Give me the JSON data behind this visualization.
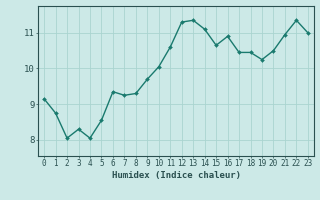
{
  "x": [
    0,
    1,
    2,
    3,
    4,
    5,
    6,
    7,
    8,
    9,
    10,
    11,
    12,
    13,
    14,
    15,
    16,
    17,
    18,
    19,
    20,
    21,
    22,
    23
  ],
  "y": [
    9.15,
    8.75,
    8.05,
    8.3,
    8.05,
    8.55,
    9.35,
    9.25,
    9.3,
    9.7,
    10.05,
    10.6,
    11.3,
    11.35,
    11.1,
    10.65,
    10.9,
    10.45,
    10.45,
    10.25,
    10.5,
    10.95,
    11.35,
    11.0
  ],
  "line_color": "#1a7a6e",
  "marker": "D",
  "marker_size": 2.0,
  "linewidth": 1.0,
  "bg_color": "#cce9e7",
  "grid_color": "#aad4d0",
  "axis_color": "#2a5050",
  "xlabel": "Humidex (Indice chaleur)",
  "xlabel_fontsize": 6.5,
  "ylabel_ticks": [
    8,
    9,
    10,
    11
  ],
  "xlim": [
    -0.5,
    23.5
  ],
  "ylim": [
    7.55,
    11.75
  ],
  "tick_fontsize": 5.5,
  "ytick_fontsize": 6.5
}
